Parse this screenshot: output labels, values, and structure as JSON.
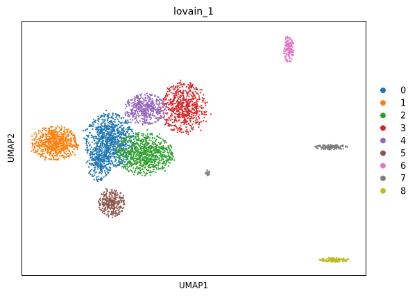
{
  "chart_data": {
    "type": "scatter",
    "title": "lovain_1",
    "xlabel": "UMAP1",
    "ylabel": "UMAP2",
    "grid": false,
    "legend_placement": "right",
    "xlim": [
      0,
      100
    ],
    "ylim": [
      0,
      100
    ],
    "series": [
      {
        "name": "0",
        "color": "#1f77b4",
        "clusters": [
          {
            "cx": 25.5,
            "cy": 53,
            "rx": 6.5,
            "ry": 10,
            "n": 900
          },
          {
            "cx": 22.5,
            "cy": 44,
            "rx": 3,
            "ry": 6,
            "n": 200
          }
        ]
      },
      {
        "name": "1",
        "color": "#ff7f0e",
        "clusters": [
          {
            "cx": 9.5,
            "cy": 52,
            "rx": 6,
            "ry": 6,
            "n": 700
          }
        ]
      },
      {
        "name": "2",
        "color": "#2ca02c",
        "clusters": [
          {
            "cx": 35.5,
            "cy": 48,
            "rx": 7.5,
            "ry": 7.5,
            "n": 850
          }
        ]
      },
      {
        "name": "3",
        "color": "#d62728",
        "clusters": [
          {
            "cx": 47,
            "cy": 66,
            "rx": 6,
            "ry": 9,
            "n": 650
          }
        ]
      },
      {
        "name": "4",
        "color": "#9467bd",
        "clusters": [
          {
            "cx": 36,
            "cy": 65.5,
            "rx": 5.5,
            "ry": 5.5,
            "n": 450
          }
        ]
      },
      {
        "name": "5",
        "color": "#8c564b",
        "clusters": [
          {
            "cx": 26,
            "cy": 28.5,
            "rx": 3.5,
            "ry": 5,
            "n": 300
          }
        ]
      },
      {
        "name": "6",
        "color": "#e377c2",
        "clusters": [
          {
            "cx": 77.5,
            "cy": 89,
            "rx": 1.5,
            "ry": 4.5,
            "n": 160
          }
        ]
      },
      {
        "name": "7",
        "color": "#7f7f7f",
        "clusters": [
          {
            "cx": 90,
            "cy": 50.5,
            "rx": 4.5,
            "ry": 0.9,
            "n": 160
          },
          {
            "cx": 54,
            "cy": 40.5,
            "rx": 0.6,
            "ry": 1.2,
            "n": 20
          }
        ]
      },
      {
        "name": "8",
        "color": "#bcbd22",
        "clusters": [
          {
            "cx": 91,
            "cy": 6,
            "rx": 4,
            "ry": 0.8,
            "n": 130
          }
        ]
      }
    ]
  }
}
